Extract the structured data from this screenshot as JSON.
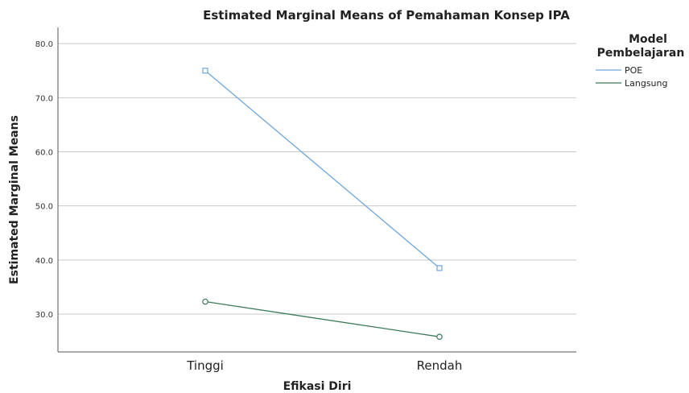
{
  "chart_data": {
    "type": "line",
    "title": "Estimated Marginal Means of Pemahaman Konsep IPA",
    "xlabel": "Efikasi Diri",
    "ylabel": "Estimated Marginal Means",
    "categories": [
      "Tinggi",
      "Rendah"
    ],
    "ylim": [
      23,
      83
    ],
    "yticks": [
      "30.0",
      "40.0",
      "50.0",
      "60.0",
      "70.0",
      "80.0"
    ],
    "grid": true,
    "legend": {
      "title_line1": "Model",
      "title_line2": "Pembelajaran",
      "position": "top-right"
    },
    "series": [
      {
        "name": "POE",
        "values": [
          75.0,
          38.5
        ],
        "color": "#6fa8dc"
      },
      {
        "name": "Langsung",
        "values": [
          32.3,
          25.8
        ],
        "color": "#3d7a5c"
      }
    ]
  }
}
